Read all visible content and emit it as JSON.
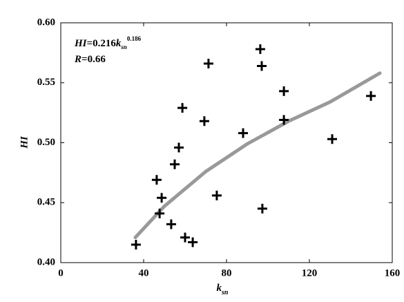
{
  "chart_data": {
    "type": "scatter",
    "x_label": {
      "main": "k",
      "sub": "sn"
    },
    "y_label": "HI",
    "annotation": {
      "line1": {
        "lhs": "HI",
        "rhs": "=0.216",
        "base": "k",
        "sub": "sn",
        "exp": "0.186"
      },
      "line2": {
        "lhs": "R",
        "rhs": "=0.66"
      }
    },
    "series": [
      {
        "name": "data",
        "color": "#000000",
        "x": [
          36.3,
          46.3,
          48.7,
          47.7,
          53.3,
          55,
          57,
          58.7,
          60,
          63.7,
          69.3,
          71.3,
          75.3,
          88,
          96.3,
          97,
          97.3,
          107.7,
          107.7,
          131,
          149.7
        ],
        "values": [
          0.415,
          0.469,
          0.454,
          0.441,
          0.432,
          0.482,
          0.496,
          0.529,
          0.421,
          0.417,
          0.518,
          0.566,
          0.456,
          0.508,
          0.578,
          0.564,
          0.445,
          0.543,
          0.519,
          0.503,
          0.539
        ]
      },
      {
        "name": "fit",
        "color": "#999999",
        "x": [
          36,
          50,
          70,
          90,
          110,
          130,
          154
        ],
        "values": [
          0.421,
          0.447,
          0.476,
          0.499,
          0.518,
          0.534,
          0.558
        ]
      }
    ],
    "xlim": [
      0,
      160
    ],
    "xticks": [
      0,
      40,
      80,
      120,
      160
    ],
    "ylim": [
      0.4,
      0.6
    ],
    "yticks": [
      {
        "value": 0.4,
        "label": "0.40"
      },
      0.45,
      {
        "value": 0.5,
        "label": "0.50"
      },
      0.55,
      {
        "value": 0.6,
        "label": "0.60"
      }
    ]
  }
}
